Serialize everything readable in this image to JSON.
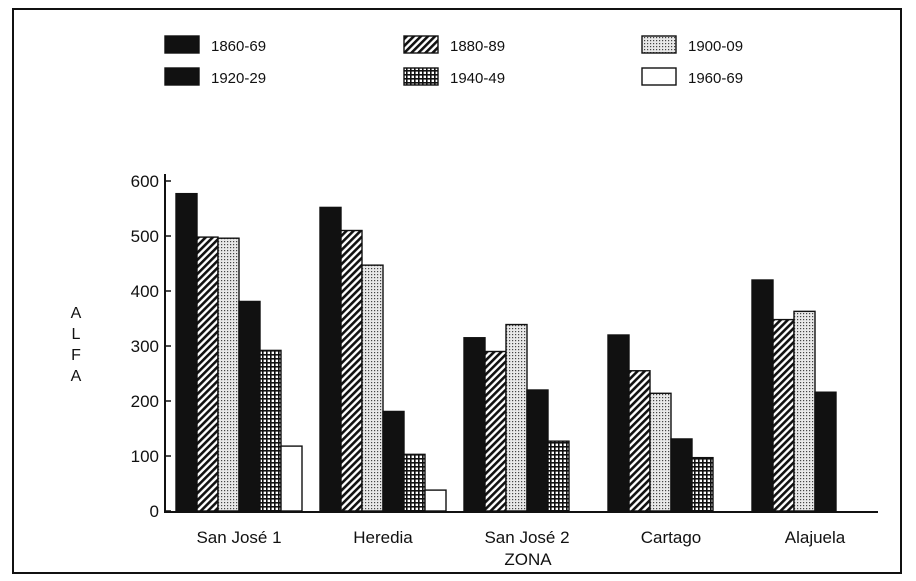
{
  "chart_data": {
    "type": "bar",
    "title": "",
    "xlabel": "ZONA",
    "ylabel": "ALFA",
    "ylim": [
      0,
      600
    ],
    "yticks": [
      0,
      100,
      200,
      300,
      400,
      500,
      600
    ],
    "grid": false,
    "legend_position": "top",
    "categories": [
      "San José 1",
      "Heredia",
      "San José 2",
      "Cartago",
      "Alajuela"
    ],
    "series": [
      {
        "name": "1860-69",
        "pattern": "solid-black",
        "values": [
          577,
          552,
          315,
          320,
          420
        ]
      },
      {
        "name": "1880-89",
        "pattern": "diagonal-hatch",
        "values": [
          498,
          510,
          290,
          255,
          348
        ]
      },
      {
        "name": "1900-09",
        "pattern": "light-dots",
        "values": [
          496,
          447,
          339,
          214,
          363
        ]
      },
      {
        "name": "1920-29",
        "pattern": "solid-black",
        "values": [
          381,
          181,
          220,
          131,
          216
        ]
      },
      {
        "name": "1940-49",
        "pattern": "crosshatch",
        "values": [
          292,
          103,
          127,
          97,
          null
        ]
      },
      {
        "name": "1960-69",
        "pattern": "white",
        "values": [
          118,
          38,
          null,
          null,
          null
        ]
      }
    ]
  }
}
